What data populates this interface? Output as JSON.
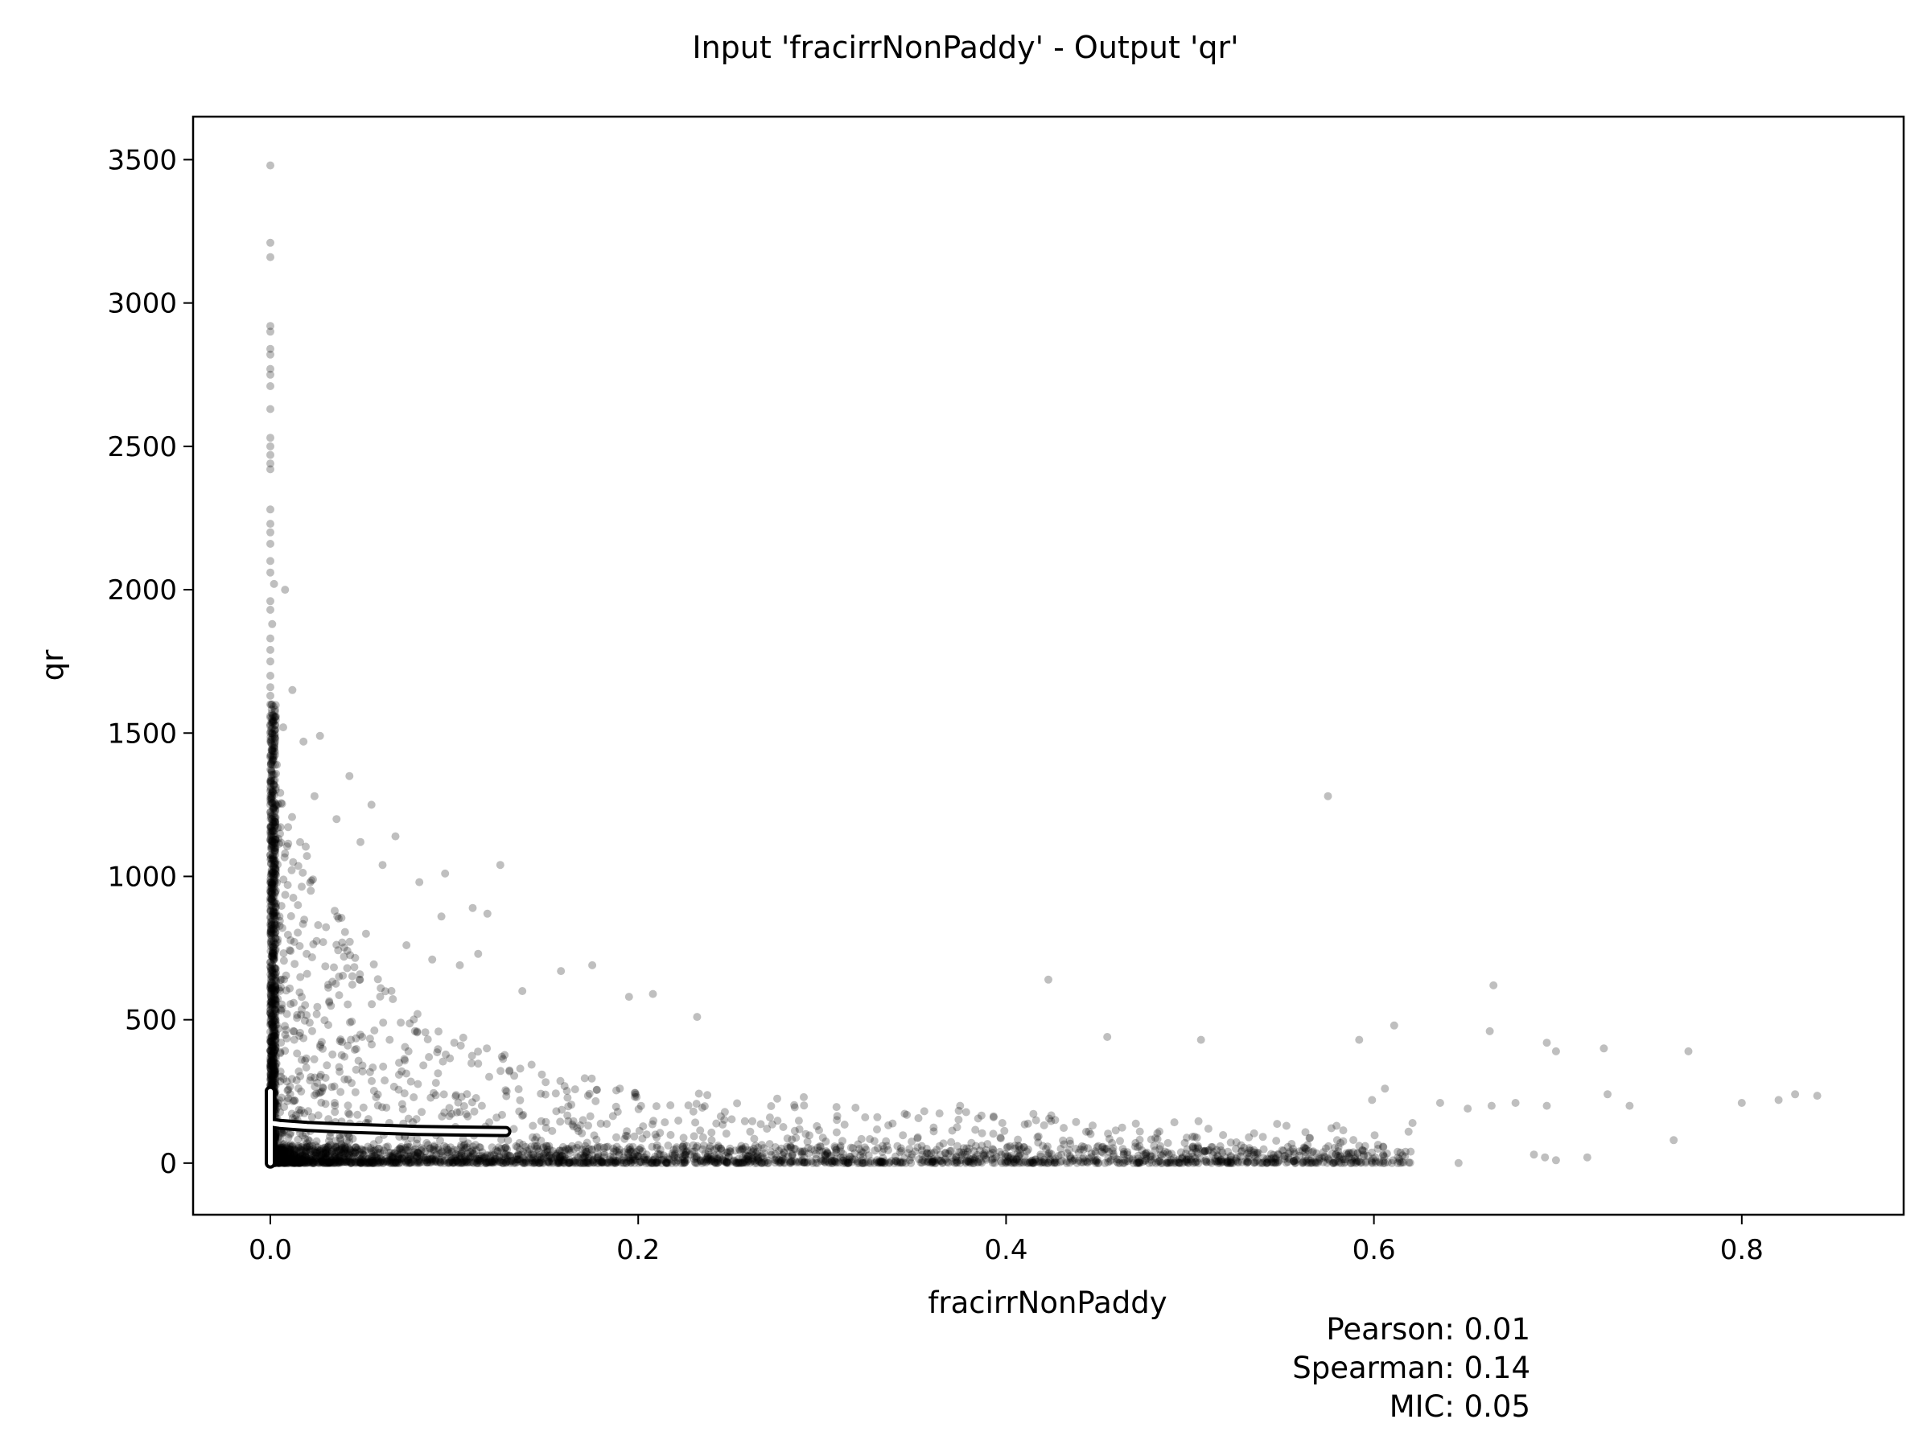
{
  "chart_data": {
    "type": "scatter",
    "title": "Input 'fracirrNonPaddy' - Output 'qr'",
    "xlabel": "fracirrNonPaddy",
    "ylabel": "qr",
    "xlim": [
      -0.042,
      0.888
    ],
    "ylim": [
      -180,
      3650
    ],
    "xticks": [
      "0.0",
      "0.2",
      "0.4",
      "0.6",
      "0.8"
    ],
    "xtick_values": [
      0.0,
      0.2,
      0.4,
      0.6,
      0.8
    ],
    "yticks": [
      "0",
      "500",
      "1000",
      "1500",
      "2000",
      "2500",
      "3000",
      "3500"
    ],
    "ytick_values": [
      0,
      500,
      1000,
      1500,
      2000,
      2500,
      3000,
      3500
    ],
    "grid": false,
    "legend": "none",
    "point_color": "#000000",
    "point_opacity": 0.25,
    "series": [
      {
        "kind": "scatter",
        "points": [
          [
            0.0,
            3480
          ],
          [
            0.0,
            3210
          ],
          [
            0.0,
            3160
          ],
          [
            0.0,
            2920
          ],
          [
            0.0,
            2900
          ],
          [
            0.0,
            2840
          ],
          [
            0.0,
            2820
          ],
          [
            0.0,
            2770
          ],
          [
            0.0,
            2750
          ],
          [
            0.0,
            2710
          ],
          [
            0.0,
            2630
          ],
          [
            0.0,
            2530
          ],
          [
            0.0,
            2500
          ],
          [
            0.0,
            2470
          ],
          [
            0.0,
            2440
          ],
          [
            0.0,
            2420
          ],
          [
            0.0,
            2280
          ],
          [
            0.0,
            2230
          ],
          [
            0.0,
            2200
          ],
          [
            0.0,
            2160
          ],
          [
            0.0,
            2100
          ],
          [
            0.0,
            2060
          ],
          [
            0.002,
            2020
          ],
          [
            0.0,
            1960
          ],
          [
            0.0,
            1930
          ],
          [
            0.001,
            1880
          ],
          [
            0.0,
            1830
          ],
          [
            0.0,
            1790
          ],
          [
            0.0,
            1750
          ],
          [
            0.0,
            1700
          ],
          [
            0.0,
            1660
          ],
          [
            0.0,
            1630
          ],
          [
            0.0,
            1600
          ],
          [
            0.0,
            1560
          ],
          [
            0.0,
            1530
          ],
          [
            0.0,
            1500
          ],
          [
            0.008,
            2000
          ],
          [
            0.012,
            1650
          ],
          [
            0.007,
            1520
          ],
          [
            0.027,
            1490
          ],
          [
            0.018,
            1470
          ],
          [
            0.043,
            1350
          ],
          [
            0.055,
            1250
          ],
          [
            0.068,
            1140
          ],
          [
            0.095,
            1010
          ],
          [
            0.125,
            1040
          ],
          [
            0.575,
            1280
          ],
          [
            0.024,
            1280
          ],
          [
            0.036,
            1200
          ],
          [
            0.049,
            1120
          ],
          [
            0.061,
            1040
          ],
          [
            0.081,
            980
          ],
          [
            0.093,
            860
          ],
          [
            0.11,
            890
          ],
          [
            0.118,
            870
          ],
          [
            0.022,
            950
          ],
          [
            0.035,
            880
          ],
          [
            0.052,
            800
          ],
          [
            0.074,
            760
          ],
          [
            0.088,
            710
          ],
          [
            0.103,
            690
          ],
          [
            0.113,
            730
          ],
          [
            0.137,
            600
          ],
          [
            0.158,
            670
          ],
          [
            0.175,
            690
          ],
          [
            0.195,
            580
          ],
          [
            0.208,
            590
          ],
          [
            0.232,
            510
          ],
          [
            0.423,
            640
          ],
          [
            0.665,
            620
          ],
          [
            0.611,
            480
          ],
          [
            0.592,
            430
          ],
          [
            0.455,
            440
          ],
          [
            0.506,
            430
          ],
          [
            0.663,
            460
          ],
          [
            0.694,
            420
          ],
          [
            0.725,
            400
          ],
          [
            0.771,
            390
          ],
          [
            0.829,
            240
          ],
          [
            0.841,
            235
          ],
          [
            0.8,
            210
          ],
          [
            0.82,
            220
          ],
          [
            0.739,
            200
          ],
          [
            0.699,
            390
          ],
          [
            0.694,
            200
          ],
          [
            0.677,
            210
          ],
          [
            0.664,
            200
          ],
          [
            0.651,
            190
          ],
          [
            0.636,
            210
          ],
          [
            0.621,
            140
          ],
          [
            0.606,
            260
          ],
          [
            0.599,
            220
          ],
          [
            0.62,
            40
          ],
          [
            0.605,
            30
          ],
          [
            0.646,
            0
          ],
          [
            0.687,
            30
          ],
          [
            0.693,
            20
          ],
          [
            0.699,
            10
          ],
          [
            0.716,
            20
          ],
          [
            0.763,
            80
          ],
          [
            0.727,
            240
          ],
          [
            0.58,
            80
          ],
          [
            0.556,
            50
          ],
          [
            0.532,
            90
          ],
          [
            0.51,
            120
          ],
          [
            0.488,
            70
          ],
          [
            0.466,
            30
          ],
          [
            0.445,
            110
          ],
          [
            0.42,
            60
          ],
          [
            0.398,
            140
          ],
          [
            0.375,
            200
          ],
          [
            0.352,
            90
          ],
          [
            0.33,
            160
          ],
          [
            0.31,
            60
          ],
          [
            0.29,
            230
          ],
          [
            0.27,
            120
          ],
          [
            0.25,
            40
          ],
          [
            0.23,
            180
          ],
          [
            0.21,
            90
          ],
          [
            0.19,
            260
          ],
          [
            0.17,
            150
          ],
          [
            0.15,
            60
          ],
          [
            0.13,
            320
          ],
          [
            0.115,
            200
          ],
          [
            0.1,
            420
          ],
          [
            0.09,
            280
          ],
          [
            0.08,
            520
          ],
          [
            0.07,
            350
          ],
          [
            0.06,
            610
          ],
          [
            0.05,
            440
          ],
          [
            0.04,
            720
          ],
          [
            0.032,
            560
          ],
          [
            0.026,
            830
          ],
          [
            0.02,
            660
          ],
          [
            0.015,
            900
          ],
          [
            0.011,
            740
          ],
          [
            0.008,
            1080
          ],
          [
            0.005,
            860
          ],
          [
            0.003,
            1250
          ],
          [
            0.002,
            1100
          ],
          [
            0.001,
            1400
          ],
          [
            0.001,
            1200
          ],
          [
            0.003,
            950
          ],
          [
            0.004,
            780
          ],
          [
            0.006,
            640
          ],
          [
            0.009,
            520
          ],
          [
            0.013,
            430
          ],
          [
            0.017,
            360
          ],
          [
            0.022,
            300
          ],
          [
            0.028,
            250
          ],
          [
            0.035,
            210
          ],
          [
            0.043,
            170
          ],
          [
            0.052,
            140
          ],
          [
            0.062,
            110
          ],
          [
            0.073,
            90
          ],
          [
            0.085,
            70
          ],
          [
            0.098,
            55
          ],
          [
            0.112,
            45
          ],
          [
            0.127,
            35
          ],
          [
            0.143,
            28
          ],
          [
            0.16,
            22
          ],
          [
            0.178,
            18
          ],
          [
            0.197,
            14
          ],
          [
            0.217,
            12
          ],
          [
            0.238,
            10
          ],
          [
            0.26,
            8
          ],
          [
            0.283,
            7
          ],
          [
            0.307,
            6
          ],
          [
            0.332,
            5
          ],
          [
            0.358,
            4
          ],
          [
            0.385,
            3
          ],
          [
            0.413,
            3
          ],
          [
            0.442,
            2
          ],
          [
            0.472,
            2
          ],
          [
            0.503,
            2
          ],
          [
            0.535,
            1
          ],
          [
            0.568,
            1
          ],
          [
            0.601,
            1
          ]
        ]
      }
    ],
    "fit_line": [
      [
        0.0,
        250
      ],
      [
        0.0,
        140
      ],
      [
        0.005,
        135
      ],
      [
        0.02,
        128
      ],
      [
        0.04,
        122
      ],
      [
        0.06,
        118
      ],
      [
        0.08,
        114
      ],
      [
        0.1,
        112
      ],
      [
        0.128,
        110
      ]
    ],
    "fit_line_vertical": [
      [
        0.0,
        0
      ],
      [
        0.0,
        250
      ]
    ],
    "dense_band": {
      "x_range": [
        0.0,
        0.62
      ],
      "y_range": [
        0,
        60
      ]
    },
    "dense_column": {
      "x_range": [
        0.0,
        0.003
      ],
      "y_range": [
        0,
        1600
      ]
    },
    "stats": [
      {
        "label": "Pearson: 0.01"
      },
      {
        "label": "Spearman: 0.14"
      },
      {
        "label": "MIC: 0.05"
      }
    ]
  }
}
